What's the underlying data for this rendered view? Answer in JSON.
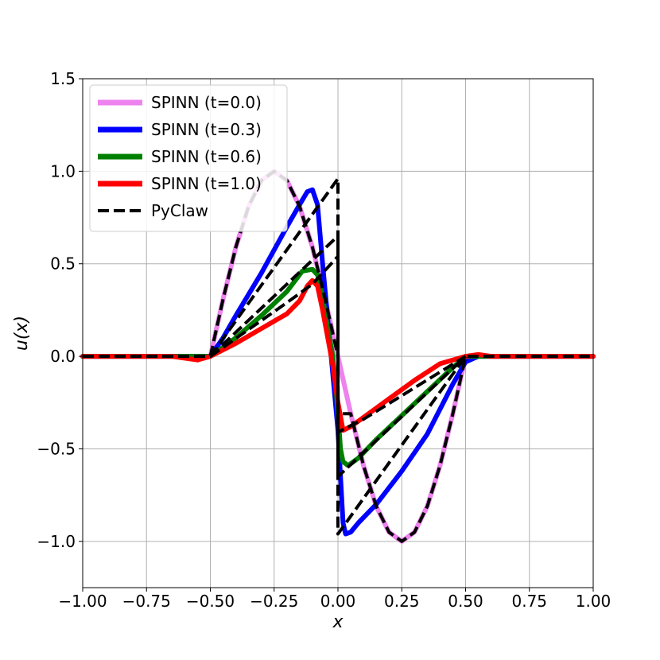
{
  "chart_data": {
    "type": "line",
    "xlabel": "x",
    "ylabel": "u(x)",
    "xlim": [
      -1.0,
      1.0
    ],
    "ylim": [
      -1.25,
      1.5
    ],
    "xticks": [
      -1.0,
      -0.75,
      -0.5,
      -0.25,
      0.0,
      0.25,
      0.5,
      0.75,
      1.0
    ],
    "xtick_labels": [
      "−1.00",
      "−0.75",
      "−0.50",
      "−0.25",
      "0.00",
      "0.25",
      "0.50",
      "0.75",
      "1.00"
    ],
    "yticks": [
      -1.0,
      -0.5,
      0.0,
      0.5,
      1.0,
      1.5
    ],
    "ytick_labels": [
      "−1.0",
      "−0.5",
      "0.0",
      "0.5",
      "1.0",
      "1.5"
    ],
    "grid": true,
    "legend_position": "top-left",
    "series": [
      {
        "name": "SPINN (t=0.0)",
        "color": "#ee82ee",
        "style": "solid",
        "x": [
          -1.0,
          -0.55,
          -0.5,
          -0.45,
          -0.4,
          -0.35,
          -0.3,
          -0.25,
          -0.2,
          -0.15,
          -0.1,
          -0.05,
          0.0,
          0.05,
          0.1,
          0.15,
          0.2,
          0.25,
          0.3,
          0.35,
          0.4,
          0.45,
          0.5,
          0.55,
          1.0
        ],
        "y": [
          0.0,
          0.0,
          0.0,
          0.31,
          0.59,
          0.81,
          0.95,
          1.0,
          0.95,
          0.81,
          0.59,
          0.31,
          0.0,
          -0.31,
          -0.59,
          -0.81,
          -0.95,
          -1.0,
          -0.95,
          -0.81,
          -0.59,
          -0.31,
          0.0,
          0.0,
          0.0
        ]
      },
      {
        "name": "SPINN (t=0.3)",
        "color": "#0000ff",
        "style": "solid",
        "x": [
          -1.0,
          -0.55,
          -0.5,
          -0.45,
          -0.4,
          -0.3,
          -0.2,
          -0.15,
          -0.12,
          -0.1,
          -0.08,
          -0.06,
          -0.04,
          -0.02,
          0.0,
          0.02,
          0.03,
          0.05,
          0.08,
          0.15,
          0.25,
          0.35,
          0.45,
          0.5,
          0.55,
          1.0
        ],
        "y": [
          0.0,
          0.0,
          0.0,
          0.1,
          0.22,
          0.45,
          0.7,
          0.82,
          0.89,
          0.9,
          0.82,
          0.5,
          0.2,
          -0.1,
          -0.4,
          -0.9,
          -0.96,
          -0.95,
          -0.9,
          -0.8,
          -0.62,
          -0.42,
          -0.15,
          -0.03,
          0.0,
          0.0
        ]
      },
      {
        "name": "SPINN (t=0.6)",
        "color": "#008000",
        "style": "solid",
        "x": [
          -1.0,
          -0.55,
          -0.5,
          -0.45,
          -0.4,
          -0.3,
          -0.2,
          -0.14,
          -0.1,
          -0.08,
          -0.06,
          -0.04,
          -0.02,
          0.0,
          0.01,
          0.02,
          0.04,
          0.08,
          0.15,
          0.25,
          0.35,
          0.45,
          0.5,
          0.55,
          1.0
        ],
        "y": [
          0.0,
          0.0,
          0.0,
          0.05,
          0.1,
          0.22,
          0.35,
          0.46,
          0.47,
          0.44,
          0.32,
          0.15,
          0.0,
          -0.3,
          -0.5,
          -0.57,
          -0.59,
          -0.55,
          -0.45,
          -0.32,
          -0.19,
          -0.06,
          0.0,
          0.0,
          0.0
        ]
      },
      {
        "name": "SPINN (t=1.0)",
        "color": "#ff0000",
        "style": "solid",
        "x": [
          -1.0,
          -0.65,
          -0.6,
          -0.55,
          -0.5,
          -0.4,
          -0.3,
          -0.2,
          -0.15,
          -0.12,
          -0.1,
          -0.08,
          -0.06,
          -0.04,
          -0.02,
          0.0,
          0.02,
          0.05,
          0.1,
          0.2,
          0.3,
          0.4,
          0.5,
          0.55,
          0.6,
          0.65,
          1.0
        ],
        "y": [
          0.0,
          0.0,
          -0.01,
          -0.02,
          0.0,
          0.07,
          0.15,
          0.23,
          0.3,
          0.38,
          0.41,
          0.38,
          0.25,
          0.1,
          -0.05,
          -0.25,
          -0.4,
          -0.38,
          -0.33,
          -0.23,
          -0.13,
          -0.04,
          0.0,
          0.01,
          0.0,
          0.0,
          0.0
        ]
      },
      {
        "name": "PyClaw",
        "color": "#000000",
        "style": "dashed",
        "x": [
          -1.0,
          -0.55,
          -0.5,
          -0.45,
          -0.4,
          -0.35,
          -0.3,
          -0.25,
          -0.2,
          -0.15,
          -0.1,
          -0.05,
          0.0,
          0.001,
          0.05,
          0.1,
          0.15,
          0.2,
          0.25,
          0.3,
          0.35,
          0.4,
          0.45,
          0.5,
          0.55,
          1.0
        ],
        "y": [
          0.0,
          0.0,
          0.0,
          0.31,
          0.59,
          0.81,
          0.95,
          1.0,
          0.95,
          0.81,
          0.59,
          0.31,
          0.0,
          -0.31,
          -0.31,
          -0.59,
          -0.81,
          -0.95,
          -1.0,
          -0.95,
          -0.81,
          -0.59,
          -0.31,
          0.0,
          0.0,
          0.0
        ],
        "extra_segments": [
          {
            "x": [
              -0.5,
              0.0,
              0.0,
              0.5
            ],
            "y": [
              0.0,
              0.96,
              -0.96,
              0.0
            ]
          },
          {
            "x": [
              -0.5,
              0.0,
              0.0,
              0.5
            ],
            "y": [
              0.0,
              0.65,
              -0.65,
              0.0
            ]
          },
          {
            "x": [
              -0.5,
              -0.2,
              -0.1,
              0.0,
              0.0,
              0.1,
              0.5
            ],
            "y": [
              0.0,
              0.29,
              0.39,
              0.54,
              -0.41,
              -0.34,
              0.0
            ]
          }
        ]
      }
    ]
  }
}
